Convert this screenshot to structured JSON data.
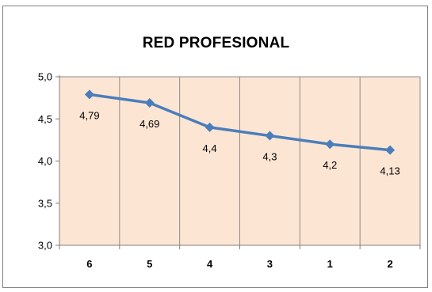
{
  "chart_data": {
    "type": "line",
    "title": "RED PROFESIONAL",
    "xlabel": "",
    "ylabel": "",
    "categories": [
      "6",
      "5",
      "4",
      "3",
      "1",
      "2"
    ],
    "series": [
      {
        "values": [
          4.79,
          4.69,
          4.4,
          4.3,
          4.2,
          4.13
        ]
      }
    ],
    "data_labels": [
      "4,79",
      "4,69",
      "4,4",
      "4,3",
      "4,2",
      "4,13"
    ],
    "ylim": [
      3.0,
      5.0
    ],
    "y_ticks": [
      3.0,
      3.5,
      4.0,
      4.5,
      5.0
    ],
    "y_tick_labels": [
      "3,0",
      "3,5",
      "4,0",
      "4,5",
      "5,0"
    ],
    "grid": true,
    "colors": {
      "plot_background": "#fde5d3",
      "series_line": "#4a7ebb",
      "grid": "#8c8c8c"
    }
  }
}
